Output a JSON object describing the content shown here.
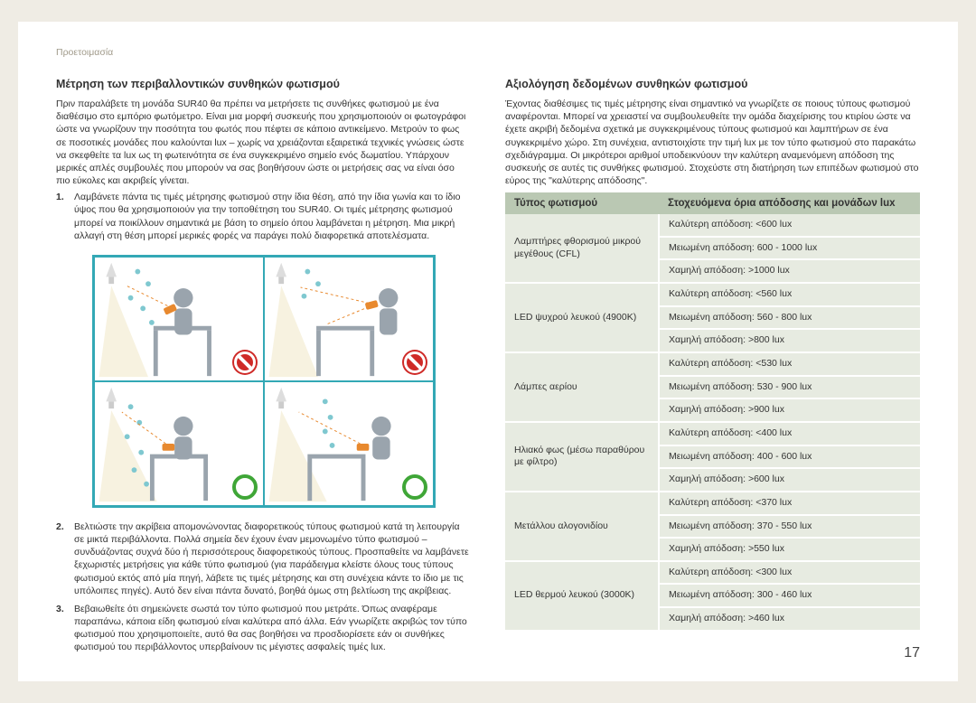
{
  "breadcrumb": "Προετοιμασία",
  "page_number": "17",
  "left": {
    "heading": "Μέτρηση των περιβαλλοντικών συνθηκών φωτισμού",
    "intro": "Πριν παραλάβετε τη μονάδα SUR40 θα πρέπει να μετρήσετε τις συνθήκες φωτισμού με ένα διαθέσιμο στο εμπόριο φωτόμετρο. Είναι μια μορφή συσκευής που χρησιμοποιούν οι φωτογράφοι ώστε να γνωρίζουν την ποσότητα του φωτός που πέφτει σε κάποιο αντικείμενο. Μετρούν το φως σε ποσοτικές μονάδες που καλούνται lux – χωρίς να χρειάζονται εξαιρετικά τεχνικές γνώσεις ώστε να σκεφθείτε τα lux ως τη φωτεινότητα σε ένα συγκεκριμένο σημείο ενός δωματίου. Υπάρχουν μερικές απλές συμβουλές που μπορούν να σας βοηθήσουν ώστε οι μετρήσεις σας να είναι όσο πιο εύκολες και ακριβείς γίνεται.",
    "items": [
      {
        "n": "1.",
        "t": "Λαμβάνετε πάντα τις τιμές μέτρησης φωτισμού στην ίδια θέση, από την ίδια γωνία και το ίδιο ύψος που θα χρησιμοποιούν για την τοποθέτηση του SUR40. Οι τιμές μέτρησης φωτισμού μπορεί να ποικίλλουν σημαντικά με βάση το σημείο όπου λαμβάνεται η μέτρηση. Μια μικρή αλλαγή στη θέση μπορεί μερικές φορές να παράγει πολύ διαφορετικά αποτελέσματα."
      },
      {
        "n": "2.",
        "t": "Βελτιώστε την ακρίβεια απομονώνοντας διαφορετικούς τύπους φωτισμού κατά τη λειτουργία σε μικτά περιβάλλοντα. Πολλά σημεία δεν έχουν έναν μεμονωμένο τύπο φωτισμού – συνδυάζοντας συχνά δύο ή περισσότερους διαφορετικούς τύπους. Προσπαθείτε να λαμβάνετε ξεχωριστές μετρήσεις για κάθε τύπο φωτισμού  (για παράδειγμα κλείστε όλους τους τύπους φωτισμού εκτός από μία πηγή, λάβετε τις τιμές μέτρησης και στη συνέχεια κάντε το ίδιο με τις υπόλοιπες πηγές). Αυτό δεν είναι πάντα δυνατό, βοηθά όμως στη βελτίωση της ακρίβειας."
      },
      {
        "n": "3.",
        "t": "Βεβαιωθείτε ότι σημειώνετε σωστά τον τύπο φωτισμού που μετράτε. Όπως αναφέραμε παραπάνω, κάποια είδη φωτισμού είναι καλύτερα από άλλα. Εάν γνωρίζετε ακριβώς τον τύπο φωτισμού που χρησιμοποιείτε, αυτό θα σας βοηθήσει να προσδιορίσετε εάν οι συνθήκες φωτισμού του περιβάλλοντος υπερβαίνουν τις μέγιστες ασφαλείς τιμές lux."
      }
    ]
  },
  "right": {
    "heading": "Αξιολόγηση δεδομένων συνθηκών φωτισμού",
    "intro": "Έχοντας διαθέσιμες τις τιμές μέτρησης είναι σημαντικό να γνωρίζετε σε ποιους τύπους φωτισμού αναφέρονται. Μπορεί να χρειαστεί να συμβουλευθείτε την ομάδα διαχείρισης του κτιρίου ώστε να έχετε ακριβή δεδομένα σχετικά με συγκεκριμένους τύπους φωτισμού και λαμπτήρων σε ένα συγκεκριμένο χώρο. Στη συνέχεια, αντιστοιχίστε την τιμή lux με τον τύπο φωτισμού στο παρακάτω σχεδιάγραμμα. Οι μικρότεροι αριθμοί υποδεικνύουν την καλύτερη αναμενόμενη απόδοση της συσκευής σε αυτές τις συνθήκες φωτισμού. Στοχεύστε στη διατήρηση των επιπέδων φωτισμού στο εύρος της \"καλύτερης απόδοσης\".",
    "table": {
      "head_type": "Τύπος φωτισμού",
      "head_range": "Στοχευόμενα όρια απόδοσης και μονάδων lux",
      "rows": [
        {
          "type": "Λαμπτήρες φθορισμού μικρού μεγέθους (CFL)",
          "r": [
            "Καλύτερη απόδοση: <600 lux",
            "Μειωμένη απόδοση: 600 - 1000 lux",
            "Χαμηλή απόδοση: >1000 lux"
          ]
        },
        {
          "type": "LED ψυχρού λευκού (4900K)",
          "r": [
            "Καλύτερη απόδοση: <560 lux",
            "Μειωμένη απόδοση: 560 - 800 lux",
            "Χαμηλή απόδοση: >800 lux"
          ]
        },
        {
          "type": "Λάμπες αερίου",
          "r": [
            "Καλύτερη απόδοση: <530 lux",
            "Μειωμένη απόδοση: 530 - 900 lux",
            "Χαμηλή απόδοση: >900 lux"
          ]
        },
        {
          "type": "Ηλιακό φως (μέσω παραθύρου με φίλτρο)",
          "r": [
            "Καλύτερη απόδοση: <400 lux",
            "Μειωμένη απόδοση: 400 - 600 lux",
            "Χαμηλή απόδοση: >600 lux"
          ]
        },
        {
          "type": "Μετάλλου αλογονιδίου",
          "r": [
            "Καλύτερη απόδοση: <370 lux",
            "Μειωμένη απόδοση: 370 - 550 lux",
            "Χαμηλή απόδοση: >550 lux"
          ]
        },
        {
          "type": "LED θερμού λευκού (3000K)",
          "r": [
            "Καλύτερη απόδοση: <300 lux",
            "Μειωμένη απόδοση: 300 - 460 lux",
            "Χαμηλή απόδοση: >460 lux"
          ]
        }
      ]
    }
  },
  "diagram": {
    "cells": [
      {
        "badge": "no"
      },
      {
        "badge": "no"
      },
      {
        "badge": "yes"
      },
      {
        "badge": "yes"
      }
    ],
    "colors": {
      "border": "#33a8b5",
      "person": "#9aa4ad",
      "device": "#e8892e",
      "beam": "#e5c77a",
      "dots": "#7fc8d0"
    }
  }
}
